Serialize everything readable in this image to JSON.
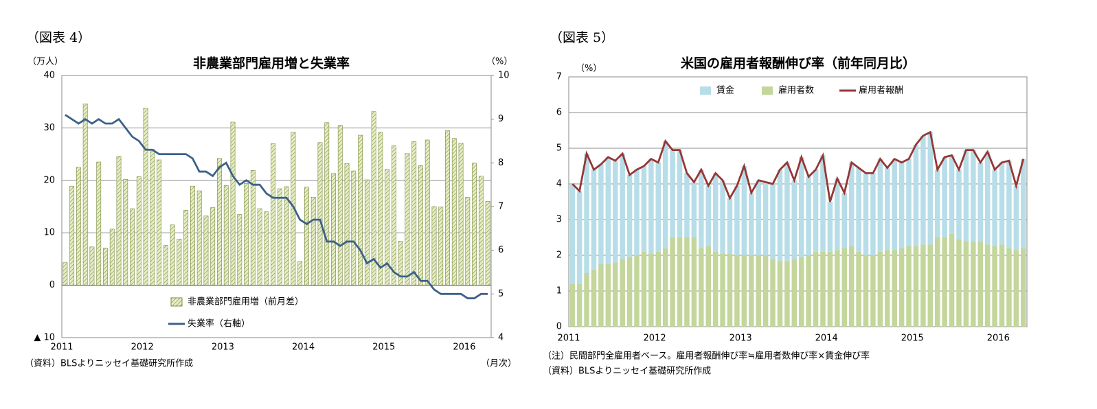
{
  "chart_data": [
    {
      "type": "bar-line",
      "figure_label": "（図表 4）",
      "title": "非農業部門雇用増と失業率",
      "y_unit": "（万人）",
      "y2_unit": "（%）",
      "x_unit": "（月次）",
      "source": "（資料）BLSよりニッセイ基礎研究所作成",
      "categories": [
        "2011",
        null,
        null,
        null,
        null,
        null,
        null,
        null,
        null,
        null,
        null,
        null,
        "2012",
        null,
        null,
        null,
        null,
        null,
        null,
        null,
        null,
        null,
        null,
        null,
        "2013",
        null,
        null,
        null,
        null,
        null,
        null,
        null,
        null,
        null,
        null,
        null,
        "2014",
        null,
        null,
        null,
        null,
        null,
        null,
        null,
        null,
        null,
        null,
        null,
        "2015",
        null,
        null,
        null,
        null,
        null,
        null,
        null,
        null,
        null,
        null,
        null,
        "2016",
        null,
        null,
        null
      ],
      "ylim": [
        -10,
        40
      ],
      "yticks": [
        {
          "value": -10,
          "label": "▲ 10"
        },
        0,
        10,
        20,
        30,
        40
      ],
      "y2lim": [
        4,
        10
      ],
      "y2ticks": [
        4,
        5,
        6,
        7,
        8,
        9,
        10
      ],
      "grid": true,
      "series": [
        {
          "name": "非農業部門雇用増（前月差）",
          "type": "bar",
          "color": "#d7e4a8",
          "values": [
            4.3,
            18.9,
            22.5,
            34.6,
            7.3,
            23.5,
            7.1,
            10.7,
            24.6,
            20.2,
            14.6,
            20.7,
            33.8,
            25.9,
            23.9,
            7.6,
            11.5,
            8.8,
            14.3,
            18.9,
            18.0,
            13.2,
            14.8,
            24.2,
            19.0,
            31.1,
            13.5,
            19.4,
            21.9,
            14.6,
            14.0,
            27.0,
            18.4,
            18.8,
            29.2,
            4.5,
            18.7,
            16.8,
            27.2,
            31.0,
            21.3,
            30.5,
            23.2,
            21.8,
            28.6,
            20.1,
            33.1,
            29.2,
            22.1,
            26.6,
            8.4,
            25.1,
            27.4,
            22.8,
            27.7,
            15.0,
            14.9,
            29.5,
            28.0,
            27.1,
            16.8,
            23.3,
            20.8,
            16.0
          ]
        },
        {
          "name": "失業率（右軸）",
          "type": "line",
          "axis": "y2",
          "color": "#3d6189",
          "values": [
            9.1,
            9.0,
            8.9,
            9.0,
            8.9,
            9.0,
            8.9,
            8.9,
            9.0,
            8.8,
            8.6,
            8.5,
            8.3,
            8.3,
            8.2,
            8.2,
            8.2,
            8.2,
            8.2,
            8.1,
            7.8,
            7.8,
            7.7,
            7.9,
            8.0,
            7.7,
            7.5,
            7.6,
            7.5,
            7.5,
            7.3,
            7.2,
            7.2,
            7.2,
            7.0,
            6.7,
            6.6,
            6.7,
            6.7,
            6.2,
            6.2,
            6.1,
            6.2,
            6.2,
            6.0,
            5.7,
            5.8,
            5.6,
            5.7,
            5.5,
            5.4,
            5.4,
            5.5,
            5.3,
            5.3,
            5.1,
            5.0,
            5.0,
            5.0,
            5.0,
            4.9,
            4.9,
            5.0,
            5.0
          ]
        }
      ]
    },
    {
      "type": "stacked-bar-line",
      "figure_label": "（図表 5）",
      "title": "米国の雇用者報酬伸び率（前年同月比）",
      "y_unit": "（%）",
      "notes": [
        "（注）民間部門全雇用者ベース。雇用者報酬伸び率≒雇用者数伸び率×賃金伸び率",
        "（資料）BLSよりニッセイ基礎研究所作成"
      ],
      "categories": [
        "2011",
        null,
        null,
        null,
        null,
        null,
        null,
        null,
        null,
        null,
        null,
        null,
        "2012",
        null,
        null,
        null,
        null,
        null,
        null,
        null,
        null,
        null,
        null,
        null,
        "2013",
        null,
        null,
        null,
        null,
        null,
        null,
        null,
        null,
        null,
        null,
        null,
        "2014",
        null,
        null,
        null,
        null,
        null,
        null,
        null,
        null,
        null,
        null,
        null,
        "2015",
        null,
        null,
        null,
        null,
        null,
        null,
        null,
        null,
        null,
        null,
        null,
        "2016",
        null,
        null,
        null
      ],
      "ylim": [
        0,
        7
      ],
      "yticks": [
        0,
        1,
        2,
        3,
        4,
        5,
        6,
        7
      ],
      "grid": true,
      "series": [
        {
          "name": "賃金",
          "type": "bar",
          "color": "#b7dde8",
          "values": [
            2.8,
            2.6,
            3.35,
            2.8,
            2.8,
            3.0,
            2.85,
            2.95,
            2.3,
            2.4,
            2.4,
            2.65,
            2.5,
            3.0,
            2.45,
            2.45,
            1.8,
            1.55,
            2.2,
            1.7,
            2.2,
            2.05,
            1.55,
            1.95,
            2.5,
            1.75,
            2.1,
            2.05,
            2.1,
            2.55,
            2.75,
            2.2,
            2.8,
            2.2,
            2.3,
            2.7,
            1.4,
            2.0,
            1.55,
            2.35,
            2.35,
            2.3,
            2.3,
            2.6,
            2.3,
            2.55,
            2.4,
            2.45,
            2.85,
            3.05,
            3.15,
            1.9,
            2.25,
            2.2,
            1.95,
            2.55,
            2.55,
            2.2,
            2.6,
            2.15,
            2.3,
            2.45,
            1.8,
            2.5
          ]
        },
        {
          "name": "雇用者数",
          "type": "bar",
          "color": "#c3d69b",
          "values": [
            1.2,
            1.2,
            1.5,
            1.6,
            1.75,
            1.75,
            1.8,
            1.9,
            1.95,
            2.0,
            2.1,
            2.05,
            2.1,
            2.2,
            2.5,
            2.5,
            2.5,
            2.5,
            2.2,
            2.25,
            2.1,
            2.05,
            2.05,
            2.0,
            2.0,
            2.0,
            2.0,
            2.0,
            1.9,
            1.85,
            1.85,
            1.9,
            1.95,
            2.0,
            2.1,
            2.1,
            2.1,
            2.15,
            2.2,
            2.25,
            2.1,
            2.0,
            2.0,
            2.1,
            2.15,
            2.15,
            2.2,
            2.25,
            2.25,
            2.3,
            2.3,
            2.5,
            2.5,
            2.6,
            2.45,
            2.4,
            2.4,
            2.4,
            2.3,
            2.25,
            2.3,
            2.2,
            2.15,
            2.2
          ]
        },
        {
          "name": "雇用者報酬",
          "type": "line",
          "color": "#953735",
          "values": [
            4.0,
            3.8,
            4.85,
            4.4,
            4.55,
            4.75,
            4.65,
            4.85,
            4.25,
            4.4,
            4.5,
            4.7,
            4.6,
            5.2,
            4.95,
            4.95,
            4.3,
            4.05,
            4.4,
            3.95,
            4.3,
            4.1,
            3.6,
            3.95,
            4.5,
            3.75,
            4.1,
            4.05,
            4.0,
            4.4,
            4.6,
            4.1,
            4.75,
            4.2,
            4.4,
            4.8,
            3.5,
            4.15,
            3.75,
            4.6,
            4.45,
            4.3,
            4.3,
            4.7,
            4.45,
            4.7,
            4.6,
            4.7,
            5.1,
            5.35,
            5.45,
            4.4,
            4.75,
            4.8,
            4.4,
            4.95,
            4.95,
            4.6,
            4.9,
            4.4,
            4.6,
            4.65,
            3.95,
            4.7
          ]
        }
      ]
    }
  ]
}
